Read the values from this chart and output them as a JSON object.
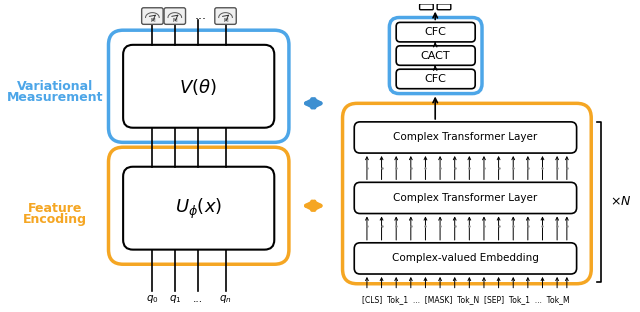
{
  "bg_color": "#ffffff",
  "blue_color": "#4da6e8",
  "orange_color": "#f5a623",
  "arrow_blue": "#3d8fd1",
  "arrow_orange": "#f5a623",
  "black": "#000000",
  "gray": "#888888",
  "label_blue": "#4da6e8",
  "label_orange": "#f5a623",
  "left_label1": "Variational",
  "left_label2": "Measurement",
  "left_label3": "Feature",
  "left_label4": "Encoding",
  "vtheta_text": "$V(\\theta)$",
  "uphi_text": "$U_{\\phi}(x)$",
  "q_labels": [
    "$q_0$",
    "$q_1$",
    "...",
    "$q_n$"
  ],
  "cfc1": "CFC",
  "cact": "CACT",
  "cfc2": "CFC",
  "ctl1": "Complex Transformer Layer",
  "ctl2": "Complex Transformer Layer",
  "cve": "Complex-valued Embedding",
  "tok_labels": "[CLS]  Tok_1  ...  [MASK]  Tok_N  [SEP]  Tok_1  ...  Tok_M",
  "times_n": "$\\times N$"
}
